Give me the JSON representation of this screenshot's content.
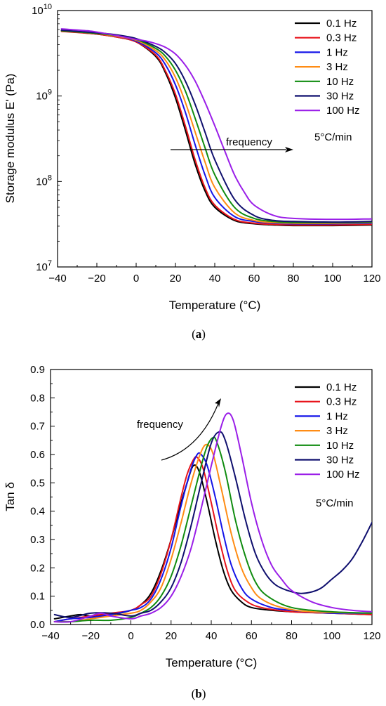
{
  "chart_data": [
    {
      "type": "line",
      "caption": "(a)",
      "caption_letter": "a",
      "xlabel": "Temperature (°C)",
      "ylabel": "Storage modulus E' (Pa)",
      "xlim": [
        -40,
        120
      ],
      "ylim": [
        10000000,
        10000000000
      ],
      "yscale": "log",
      "xticks": [
        -40,
        -20,
        0,
        20,
        40,
        60,
        80,
        100,
        120
      ],
      "xtick_labels": [
        "−40",
        "−20",
        "0",
        "20",
        "40",
        "60",
        "80",
        "100",
        "120"
      ],
      "yticks": [
        10000000,
        100000000,
        1000000000,
        10000000000
      ],
      "ytick_exponents": [
        "7",
        "8",
        "9",
        "10"
      ],
      "ytick_base": "10",
      "grid": false,
      "legend_position": "top-right",
      "annotations": [
        {
          "text": "frequency",
          "arrow": "right",
          "x": 31,
          "y": 230000000
        },
        {
          "text": "5°C/min",
          "x": 104,
          "y": 380000000
        }
      ],
      "series": [
        {
          "name": "0.1 Hz",
          "color": "#000000",
          "x": [
            -38,
            -20,
            -10,
            0,
            10,
            15,
            20,
            25,
            30,
            35,
            40,
            50,
            60,
            70,
            80,
            100,
            120
          ],
          "values": [
            5800000000,
            5300000000,
            4900000000,
            4300000000,
            2900000000,
            1850000000,
            950000000,
            400000000,
            160000000,
            78000000,
            50000000,
            35000000,
            32000000,
            31000000,
            30500000,
            30500000,
            31000000
          ]
        },
        {
          "name": "0.3 Hz",
          "color": "#e8141b",
          "x": [
            -38,
            -20,
            -10,
            0,
            10,
            15,
            20,
            25,
            30,
            35,
            40,
            50,
            60,
            70,
            80,
            100,
            120
          ],
          "values": [
            5700000000,
            5300000000,
            4900000000,
            4300000000,
            3000000000,
            1950000000,
            1050000000,
            450000000,
            180000000,
            85000000,
            53000000,
            36000000,
            32500000,
            31500000,
            31000000,
            31000000,
            31500000
          ]
        },
        {
          "name": "1 Hz",
          "color": "#1414e8",
          "x": [
            -38,
            -20,
            -10,
            0,
            10,
            15,
            20,
            25,
            30,
            35,
            40,
            50,
            60,
            70,
            80,
            100,
            120
          ],
          "values": [
            5800000000,
            5400000000,
            5000000000,
            4400000000,
            3200000000,
            2300000000,
            1350000000,
            650000000,
            270000000,
            120000000,
            65000000,
            39000000,
            34000000,
            32500000,
            32000000,
            32000000,
            32500000
          ]
        },
        {
          "name": "3 Hz",
          "color": "#ff8c14",
          "x": [
            -38,
            -20,
            -10,
            0,
            10,
            15,
            20,
            25,
            30,
            35,
            40,
            50,
            60,
            70,
            80,
            100,
            120
          ],
          "values": [
            5800000000,
            5400000000,
            5000000000,
            4500000000,
            3400000000,
            2600000000,
            1650000000,
            850000000,
            380000000,
            170000000,
            85000000,
            43000000,
            35000000,
            33000000,
            32500000,
            32500000,
            33000000
          ]
        },
        {
          "name": "10 Hz",
          "color": "#108c10",
          "x": [
            -38,
            -20,
            -10,
            0,
            10,
            15,
            20,
            25,
            30,
            35,
            40,
            50,
            60,
            70,
            80,
            100,
            120
          ],
          "values": [
            5800000000,
            5400000000,
            5100000000,
            4600000000,
            3600000000,
            2900000000,
            2000000000,
            1150000000,
            550000000,
            250000000,
            120000000,
            50000000,
            37000000,
            34000000,
            33000000,
            33000000,
            33500000
          ]
        },
        {
          "name": "30 Hz",
          "color": "#0f0f6e",
          "x": [
            -38,
            -20,
            -10,
            0,
            10,
            15,
            20,
            25,
            30,
            35,
            40,
            50,
            60,
            70,
            80,
            100,
            120
          ],
          "values": [
            5900000000,
            5500000000,
            5200000000,
            4700000000,
            3800000000,
            3200000000,
            2400000000,
            1500000000,
            800000000,
            380000000,
            180000000,
            62000000,
            40000000,
            35000000,
            34000000,
            33500000,
            34000000
          ]
        },
        {
          "name": "100 Hz",
          "color": "#9a1ee8",
          "x": [
            -38,
            -25,
            -20,
            -10,
            0,
            5,
            10,
            15,
            20,
            25,
            30,
            35,
            40,
            45,
            50,
            55,
            60,
            70,
            80,
            100,
            120
          ],
          "values": [
            6100000000,
            5800000000,
            5600000000,
            5100000000,
            4600000000,
            4400000000,
            4100000000,
            3700000000,
            3100000000,
            2300000000,
            1500000000,
            850000000,
            450000000,
            230000000,
            120000000,
            75000000,
            53000000,
            40000000,
            37000000,
            36000000,
            36500000
          ]
        }
      ]
    },
    {
      "type": "line",
      "caption": "(b)",
      "caption_letter": "b",
      "xlabel": "Temperature (°C)",
      "ylabel": "Tan δ",
      "xlim": [
        -40,
        120
      ],
      "ylim": [
        0,
        0.9
      ],
      "xticks": [
        -40,
        -20,
        0,
        20,
        40,
        60,
        80,
        100,
        120
      ],
      "xtick_labels": [
        "−40",
        "−20",
        "0",
        "20",
        "40",
        "60",
        "80",
        "100",
        "120"
      ],
      "yticks": [
        0.0,
        0.1,
        0.2,
        0.3,
        0.4,
        0.5,
        0.6,
        0.7,
        0.8,
        0.9
      ],
      "ytick_labels": [
        "0.0",
        "0.1",
        "0.2",
        "0.3",
        "0.4",
        "0.5",
        "0.6",
        "0.7",
        "0.8",
        "0.9"
      ],
      "grid": false,
      "legend_position": "top-right",
      "annotations": [
        {
          "text": "frequency",
          "arrow": "curved-up-right",
          "x": -13,
          "y": 0.7
        },
        {
          "text": "5°C/min",
          "x": 104,
          "y": 0.43
        }
      ],
      "series": [
        {
          "name": "0.1 Hz",
          "color": "#000000",
          "x": [
            -38,
            -30,
            -25,
            -20,
            -10,
            0,
            5,
            10,
            15,
            20,
            25,
            28,
            31,
            34,
            38,
            42,
            46,
            50,
            55,
            60,
            70,
            80,
            100,
            120
          ],
          "values": [
            0.02,
            0.03,
            0.035,
            0.03,
            0.035,
            0.05,
            0.07,
            0.11,
            0.19,
            0.3,
            0.43,
            0.5,
            0.56,
            0.54,
            0.43,
            0.3,
            0.19,
            0.12,
            0.08,
            0.06,
            0.05,
            0.045,
            0.04,
            0.035
          ]
        },
        {
          "name": "0.3 Hz",
          "color": "#e8141b",
          "x": [
            -38,
            -30,
            -20,
            -10,
            0,
            5,
            10,
            15,
            20,
            25,
            28,
            31,
            33,
            36,
            40,
            44,
            48,
            52,
            58,
            65,
            80,
            100,
            120
          ],
          "values": [
            0.01,
            0.02,
            0.03,
            0.04,
            0.05,
            0.07,
            0.1,
            0.18,
            0.3,
            0.45,
            0.53,
            0.58,
            0.59,
            0.55,
            0.43,
            0.3,
            0.19,
            0.12,
            0.08,
            0.06,
            0.045,
            0.04,
            0.035
          ]
        },
        {
          "name": "1 Hz",
          "color": "#1414e8",
          "x": [
            -38,
            -30,
            -20,
            -10,
            0,
            5,
            10,
            15,
            20,
            25,
            30,
            33,
            35,
            38,
            42,
            46,
            50,
            55,
            60,
            70,
            80,
            100,
            120
          ],
          "values": [
            0.01,
            0.02,
            0.025,
            0.035,
            0.05,
            0.06,
            0.09,
            0.16,
            0.27,
            0.42,
            0.55,
            0.6,
            0.6,
            0.56,
            0.45,
            0.32,
            0.21,
            0.13,
            0.09,
            0.06,
            0.05,
            0.04,
            0.04
          ]
        },
        {
          "name": "3 Hz",
          "color": "#ff8c14",
          "x": [
            -38,
            -30,
            -20,
            -10,
            0,
            5,
            10,
            15,
            20,
            25,
            30,
            35,
            38,
            41,
            45,
            50,
            55,
            60,
            65,
            75,
            90,
            120
          ],
          "values": [
            0.01,
            0.01,
            0.02,
            0.03,
            0.04,
            0.05,
            0.08,
            0.13,
            0.23,
            0.36,
            0.5,
            0.61,
            0.635,
            0.6,
            0.48,
            0.32,
            0.2,
            0.13,
            0.09,
            0.06,
            0.045,
            0.04
          ]
        },
        {
          "name": "10 Hz",
          "color": "#108c10",
          "x": [
            -38,
            -30,
            -20,
            -10,
            0,
            5,
            10,
            15,
            20,
            25,
            30,
            35,
            38,
            41,
            43,
            47,
            52,
            57,
            62,
            68,
            80,
            100,
            120
          ],
          "values": [
            0.01,
            0.01,
            0.015,
            0.015,
            0.025,
            0.04,
            0.06,
            0.1,
            0.17,
            0.28,
            0.42,
            0.56,
            0.63,
            0.66,
            0.64,
            0.54,
            0.37,
            0.24,
            0.15,
            0.1,
            0.06,
            0.045,
            0.04
          ]
        },
        {
          "name": "30 Hz",
          "color": "#0f0f6e",
          "x": [
            -38,
            -30,
            -20,
            -10,
            0,
            5,
            10,
            15,
            20,
            25,
            30,
            35,
            40,
            44,
            47,
            52,
            57,
            62,
            67,
            72,
            78,
            84,
            90,
            95,
            100,
            105,
            110,
            115,
            120
          ],
          "values": [
            0.035,
            0.025,
            0.04,
            0.04,
            0.03,
            0.04,
            0.05,
            0.08,
            0.13,
            0.22,
            0.35,
            0.5,
            0.64,
            0.68,
            0.65,
            0.52,
            0.37,
            0.25,
            0.18,
            0.14,
            0.12,
            0.11,
            0.115,
            0.13,
            0.16,
            0.19,
            0.23,
            0.29,
            0.36
          ]
        },
        {
          "name": "100 Hz",
          "color": "#9a1ee8",
          "x": [
            -38,
            -30,
            -20,
            -15,
            -10,
            0,
            5,
            10,
            15,
            20,
            25,
            30,
            35,
            40,
            45,
            48,
            51,
            55,
            60,
            65,
            70,
            75,
            80,
            90,
            100,
            110,
            120
          ],
          "values": [
            0.01,
            0.01,
            0.03,
            0.04,
            0.03,
            0.02,
            0.03,
            0.04,
            0.06,
            0.1,
            0.17,
            0.27,
            0.41,
            0.56,
            0.7,
            0.745,
            0.72,
            0.6,
            0.43,
            0.3,
            0.21,
            0.16,
            0.12,
            0.08,
            0.06,
            0.05,
            0.045
          ]
        }
      ]
    }
  ]
}
